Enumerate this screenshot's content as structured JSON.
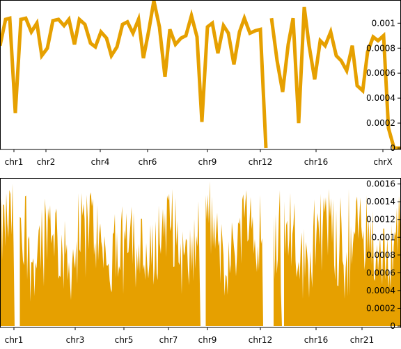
{
  "chart_data": [
    {
      "type": "line",
      "title": "",
      "xlabel": "",
      "ylabel": "",
      "ylim": [
        0,
        0.00118
      ],
      "ytick_values": [
        0,
        0.0002,
        0.0004,
        0.0006,
        0.0008,
        0.001
      ],
      "ytick_labels": [
        "0",
        "0.0002",
        "0.0004",
        "0.0006",
        "0.0008",
        "0.001"
      ],
      "xtick_labels": [
        {
          "label": "chr1",
          "x": 20
        },
        {
          "label": "chr2",
          "x": 66
        },
        {
          "label": "chr4",
          "x": 144
        },
        {
          "label": "chr6",
          "x": 212
        },
        {
          "label": "chr9",
          "x": 298
        },
        {
          "label": "chr12",
          "x": 374
        },
        {
          "label": "chr16",
          "x": 454
        },
        {
          "label": "chrX",
          "x": 550
        }
      ],
      "x_range": [
        0,
        576
      ],
      "color": "#e6a000",
      "segments": [
        [
          [
            0,
            0.00082
          ],
          [
            8,
            0.00103
          ],
          [
            14,
            0.00104
          ],
          [
            22,
            0.00028
          ],
          [
            30,
            0.00103
          ],
          [
            37,
            0.00104
          ],
          [
            45,
            0.00093
          ],
          [
            53,
            0.001
          ],
          [
            60,
            0.00074
          ],
          [
            68,
            0.0008
          ],
          [
            76,
            0.00102
          ],
          [
            84,
            0.00103
          ],
          [
            92,
            0.00098
          ],
          [
            99,
            0.00103
          ],
          [
            107,
            0.00083
          ],
          [
            114,
            0.00103
          ],
          [
            122,
            0.00099
          ],
          [
            130,
            0.00084
          ],
          [
            137,
            0.00081
          ],
          [
            145,
            0.00093
          ],
          [
            153,
            0.00088
          ],
          [
            160,
            0.00074
          ],
          [
            168,
            0.00081
          ],
          [
            176,
            0.00099
          ],
          [
            183,
            0.00101
          ],
          [
            191,
            0.00092
          ],
          [
            199,
            0.00103
          ],
          [
            206,
            0.00072
          ],
          [
            214,
            0.00095
          ],
          [
            221,
            0.00118
          ],
          [
            229,
            0.00097
          ],
          [
            237,
            0.00057
          ],
          [
            244,
            0.00095
          ],
          [
            252,
            0.00083
          ],
          [
            260,
            0.00088
          ],
          [
            267,
            0.0009
          ],
          [
            275,
            0.00106
          ],
          [
            283,
            0.00089
          ],
          [
            290,
            0.00021
          ],
          [
            298,
            0.00097
          ],
          [
            305,
            0.001
          ],
          [
            313,
            0.00076
          ],
          [
            321,
            0.00098
          ],
          [
            328,
            0.00092
          ],
          [
            336,
            0.00067
          ],
          [
            344,
            0.00093
          ],
          [
            351,
            0.00104
          ],
          [
            359,
            0.00092
          ],
          [
            367,
            0.00094
          ],
          [
            374,
            0.00095
          ],
          [
            382,
            0.0
          ]
        ],
        [
          [
            390,
            0.00104
          ],
          [
            398,
            0.0007
          ],
          [
            406,
            0.00045
          ],
          [
            414,
            0.00083
          ],
          [
            421,
            0.00104
          ],
          [
            429,
            0.0002
          ],
          [
            437,
            0.00113
          ],
          [
            444,
            0.00082
          ],
          [
            452,
            0.00055
          ],
          [
            460,
            0.00086
          ],
          [
            467,
            0.00082
          ],
          [
            475,
            0.00093
          ],
          [
            483,
            0.00074
          ],
          [
            490,
            0.0007
          ],
          [
            498,
            0.00062
          ],
          [
            506,
            0.00082
          ],
          [
            513,
            0.0005
          ],
          [
            521,
            0.00046
          ],
          [
            528,
            0.00077
          ],
          [
            536,
            0.00089
          ],
          [
            543,
            0.00086
          ],
          [
            551,
            0.0009
          ],
          [
            558,
            0.00016
          ],
          [
            566,
            0.0
          ],
          [
            576,
            0.0
          ]
        ]
      ]
    },
    {
      "type": "area",
      "title": "",
      "xlabel": "",
      "ylabel": "",
      "ylim": [
        0,
        0.00166
      ],
      "ytick_values": [
        0,
        0.0002,
        0.0004,
        0.0006,
        0.0008,
        0.001,
        0.0012,
        0.0014,
        0.0016
      ],
      "ytick_labels": [
        "0",
        "0.0002",
        "0.0004",
        "0.0006",
        "0.0008",
        "0.001",
        "0.0012",
        "0.0014",
        "0.0016"
      ],
      "xtick_labels": [
        {
          "label": "chr1",
          "x": 20
        },
        {
          "label": "chr3",
          "x": 108
        },
        {
          "label": "chr5",
          "x": 178
        },
        {
          "label": "chr7",
          "x": 242
        },
        {
          "label": "chr9",
          "x": 298
        },
        {
          "label": "chr12",
          "x": 374
        },
        {
          "label": "chr16",
          "x": 454
        },
        {
          "label": "chr21",
          "x": 520
        }
      ],
      "x_range": [
        0,
        576
      ],
      "color": "#e6a000",
      "gaps": [
        [
          20,
          28
        ],
        [
          288,
          295
        ],
        [
          378,
          393
        ],
        [
          404,
          408
        ]
      ],
      "values_estimated": true
    }
  ]
}
